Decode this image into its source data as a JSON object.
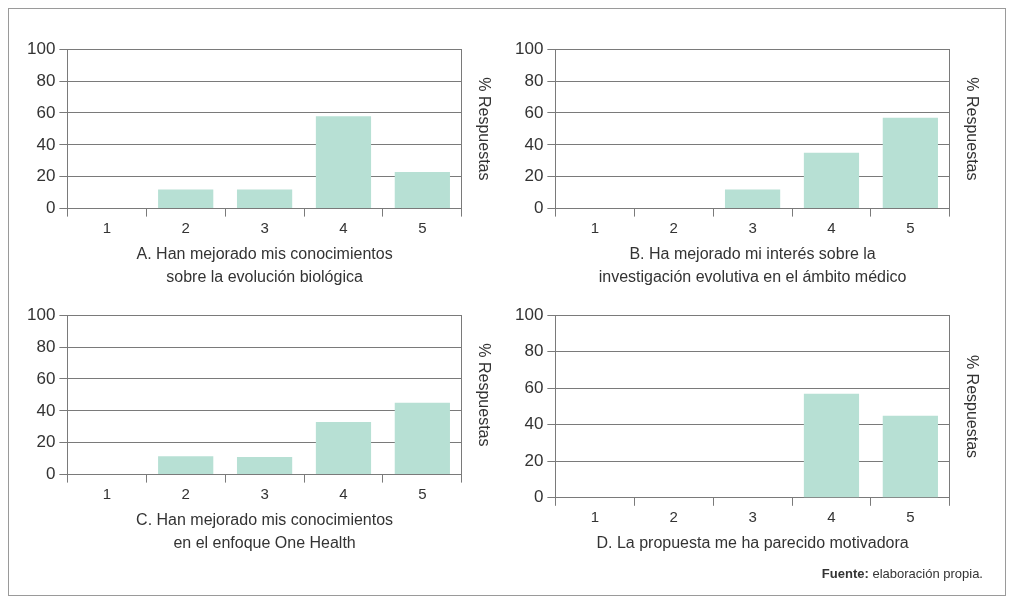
{
  "chart_data": [
    {
      "type": "bar",
      "categories": [
        "1",
        "2",
        "3",
        "4",
        "5"
      ],
      "values": [
        0,
        12,
        12,
        58,
        23
      ],
      "color": "#b7e0d4",
      "xlabel": "A. Han mejorado mis conocimientos\nsobre la evolución biológica",
      "y2label": "% Respuestas",
      "ylim": [
        0,
        100
      ],
      "yticks": [
        0,
        20,
        40,
        60,
        80,
        100
      ],
      "grid": "y"
    },
    {
      "type": "bar",
      "categories": [
        "1",
        "2",
        "3",
        "4",
        "5"
      ],
      "values": [
        0,
        0,
        12,
        35,
        57
      ],
      "color": "#b7e0d4",
      "xlabel": "B. Ha mejorado mi interés sobre la\ninvestigación evolutiva en el ámbito médico",
      "y2label": "% Respuestas",
      "ylim": [
        0,
        100
      ],
      "yticks": [
        0,
        20,
        40,
        60,
        80,
        100
      ],
      "grid": "y"
    },
    {
      "type": "bar",
      "categories": [
        "1",
        "2",
        "3",
        "4",
        "5"
      ],
      "values": [
        0,
        11.5,
        11,
        33,
        45
      ],
      "color": "#b7e0d4",
      "xlabel": "C. Han mejorado mis conocimientos\nen el enfoque One Health",
      "y2label": "% Respuestas",
      "ylim": [
        0,
        100
      ],
      "yticks": [
        0,
        20,
        40,
        60,
        80,
        100
      ],
      "grid": "y"
    },
    {
      "type": "bar",
      "categories": [
        "1",
        "2",
        "3",
        "4",
        "5"
      ],
      "values": [
        0,
        0,
        0,
        57,
        45
      ],
      "color": "#b7e0d4",
      "xlabel": "D. La propuesta me ha parecido motivadora",
      "y2label": "% Respuestas",
      "ylim": [
        0,
        100
      ],
      "yticks": [
        0,
        20,
        40,
        60,
        80,
        100
      ],
      "grid": "y",
      "annotations": [
        "Fuente: elaboración propia."
      ]
    }
  ]
}
